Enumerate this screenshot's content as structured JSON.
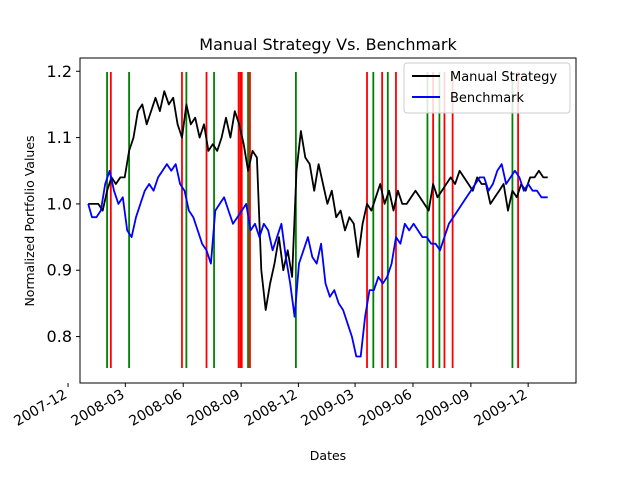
{
  "chart_data": {
    "type": "line",
    "title": "Manual Strategy Vs. Benchmark",
    "xlabel": "Dates",
    "ylabel": "Normalized Portfolio Values",
    "xlim": [
      "2007-12-20",
      "2010-02-15"
    ],
    "ylim": [
      0.73,
      1.22
    ],
    "x_ticks": [
      "2007-12",
      "2008-03",
      "2008-06",
      "2008-09",
      "2008-12",
      "2009-03",
      "2009-06",
      "2009-09",
      "2009-12"
    ],
    "y_ticks": [
      0.8,
      0.9,
      1.0,
      1.1,
      1.2
    ],
    "grid": false,
    "legend_position": "upper right",
    "series": [
      {
        "name": "Manual Strategy",
        "color": "#000000",
        "points": [
          [
            "2008-01-02",
            1.0
          ],
          [
            "2008-01-18",
            1.0
          ],
          [
            "2008-01-25",
            0.99
          ],
          [
            "2008-02-01",
            1.02
          ],
          [
            "2008-02-08",
            1.04
          ],
          [
            "2008-02-15",
            1.03
          ],
          [
            "2008-02-22",
            1.04
          ],
          [
            "2008-02-29",
            1.04
          ],
          [
            "2008-03-07",
            1.08
          ],
          [
            "2008-03-14",
            1.1
          ],
          [
            "2008-03-21",
            1.14
          ],
          [
            "2008-03-28",
            1.15
          ],
          [
            "2008-04-04",
            1.12
          ],
          [
            "2008-04-11",
            1.14
          ],
          [
            "2008-04-18",
            1.16
          ],
          [
            "2008-04-25",
            1.14
          ],
          [
            "2008-05-02",
            1.17
          ],
          [
            "2008-05-09",
            1.15
          ],
          [
            "2008-05-16",
            1.16
          ],
          [
            "2008-05-23",
            1.12
          ],
          [
            "2008-05-30",
            1.1
          ],
          [
            "2008-06-06",
            1.15
          ],
          [
            "2008-06-13",
            1.12
          ],
          [
            "2008-06-20",
            1.13
          ],
          [
            "2008-06-27",
            1.1
          ],
          [
            "2008-07-04",
            1.12
          ],
          [
            "2008-07-11",
            1.08
          ],
          [
            "2008-07-18",
            1.09
          ],
          [
            "2008-07-25",
            1.08
          ],
          [
            "2008-08-01",
            1.1
          ],
          [
            "2008-08-08",
            1.13
          ],
          [
            "2008-08-15",
            1.1
          ],
          [
            "2008-08-22",
            1.14
          ],
          [
            "2008-08-29",
            1.12
          ],
          [
            "2008-09-05",
            1.09
          ],
          [
            "2008-09-12",
            1.05
          ],
          [
            "2008-09-19",
            1.08
          ],
          [
            "2008-09-26",
            1.07
          ],
          [
            "2008-10-03",
            0.9
          ],
          [
            "2008-10-10",
            0.84
          ],
          [
            "2008-10-17",
            0.88
          ],
          [
            "2008-10-24",
            0.91
          ],
          [
            "2008-10-31",
            0.95
          ],
          [
            "2008-11-07",
            0.9
          ],
          [
            "2008-11-14",
            0.93
          ],
          [
            "2008-11-21",
            0.89
          ],
          [
            "2008-11-28",
            1.05
          ],
          [
            "2008-12-05",
            1.11
          ],
          [
            "2008-12-12",
            1.07
          ],
          [
            "2008-12-19",
            1.06
          ],
          [
            "2008-12-26",
            1.02
          ],
          [
            "2009-01-02",
            1.06
          ],
          [
            "2009-01-09",
            1.03
          ],
          [
            "2009-01-16",
            1.0
          ],
          [
            "2009-01-23",
            1.02
          ],
          [
            "2009-01-30",
            0.98
          ],
          [
            "2009-02-06",
            0.99
          ],
          [
            "2009-02-13",
            0.96
          ],
          [
            "2009-02-20",
            0.98
          ],
          [
            "2009-02-27",
            0.97
          ],
          [
            "2009-03-06",
            0.92
          ],
          [
            "2009-03-13",
            0.97
          ],
          [
            "2009-03-20",
            1.0
          ],
          [
            "2009-03-27",
            0.99
          ],
          [
            "2009-04-03",
            1.01
          ],
          [
            "2009-04-10",
            1.03
          ],
          [
            "2009-04-17",
            1.0
          ],
          [
            "2009-04-24",
            1.02
          ],
          [
            "2009-05-01",
            0.99
          ],
          [
            "2009-05-08",
            1.02
          ],
          [
            "2009-05-15",
            1.0
          ],
          [
            "2009-05-22",
            1.0
          ],
          [
            "2009-05-29",
            1.01
          ],
          [
            "2009-06-05",
            1.02
          ],
          [
            "2009-06-12",
            1.01
          ],
          [
            "2009-06-19",
            1.0
          ],
          [
            "2009-06-26",
            0.99
          ],
          [
            "2009-07-03",
            1.03
          ],
          [
            "2009-07-10",
            1.01
          ],
          [
            "2009-07-17",
            1.02
          ],
          [
            "2009-07-24",
            1.03
          ],
          [
            "2009-07-31",
            1.04
          ],
          [
            "2009-08-07",
            1.03
          ],
          [
            "2009-08-14",
            1.05
          ],
          [
            "2009-08-21",
            1.04
          ],
          [
            "2009-08-28",
            1.03
          ],
          [
            "2009-09-04",
            1.02
          ],
          [
            "2009-09-11",
            1.04
          ],
          [
            "2009-09-18",
            1.03
          ],
          [
            "2009-09-25",
            1.03
          ],
          [
            "2009-10-02",
            1.0
          ],
          [
            "2009-10-09",
            1.01
          ],
          [
            "2009-10-16",
            1.02
          ],
          [
            "2009-10-23",
            1.03
          ],
          [
            "2009-10-30",
            0.99
          ],
          [
            "2009-11-06",
            1.02
          ],
          [
            "2009-11-13",
            1.01
          ],
          [
            "2009-11-20",
            1.03
          ],
          [
            "2009-11-27",
            1.02
          ],
          [
            "2009-12-04",
            1.04
          ],
          [
            "2009-12-11",
            1.04
          ],
          [
            "2009-12-18",
            1.05
          ],
          [
            "2009-12-25",
            1.04
          ],
          [
            "2010-01-01",
            1.04
          ]
        ]
      },
      {
        "name": "Benchmark",
        "color": "#0000ff",
        "points": [
          [
            "2008-01-02",
            1.0
          ],
          [
            "2008-01-08",
            0.98
          ],
          [
            "2008-01-15",
            0.98
          ],
          [
            "2008-01-22",
            0.99
          ],
          [
            "2008-01-29",
            1.03
          ],
          [
            "2008-02-05",
            1.05
          ],
          [
            "2008-02-12",
            1.02
          ],
          [
            "2008-02-19",
            1.0
          ],
          [
            "2008-02-26",
            1.01
          ],
          [
            "2008-03-04",
            0.96
          ],
          [
            "2008-03-11",
            0.95
          ],
          [
            "2008-03-18",
            0.98
          ],
          [
            "2008-03-25",
            1.0
          ],
          [
            "2008-04-01",
            1.02
          ],
          [
            "2008-04-08",
            1.03
          ],
          [
            "2008-04-15",
            1.02
          ],
          [
            "2008-04-22",
            1.04
          ],
          [
            "2008-04-29",
            1.05
          ],
          [
            "2008-05-06",
            1.06
          ],
          [
            "2008-05-13",
            1.05
          ],
          [
            "2008-05-20",
            1.06
          ],
          [
            "2008-05-27",
            1.03
          ],
          [
            "2008-06-03",
            1.02
          ],
          [
            "2008-06-10",
            0.99
          ],
          [
            "2008-06-17",
            0.98
          ],
          [
            "2008-06-24",
            0.96
          ],
          [
            "2008-07-01",
            0.94
          ],
          [
            "2008-07-08",
            0.93
          ],
          [
            "2008-07-15",
            0.91
          ],
          [
            "2008-07-22",
            0.99
          ],
          [
            "2008-07-29",
            1.0
          ],
          [
            "2008-08-05",
            1.01
          ],
          [
            "2008-08-12",
            0.99
          ],
          [
            "2008-08-19",
            0.97
          ],
          [
            "2008-08-26",
            0.98
          ],
          [
            "2008-09-02",
            0.99
          ],
          [
            "2008-09-09",
            1.0
          ],
          [
            "2008-09-16",
            0.96
          ],
          [
            "2008-09-23",
            0.97
          ],
          [
            "2008-09-30",
            0.95
          ],
          [
            "2008-10-07",
            0.97
          ],
          [
            "2008-10-14",
            0.96
          ],
          [
            "2008-10-21",
            0.93
          ],
          [
            "2008-10-28",
            0.95
          ],
          [
            "2008-11-04",
            0.97
          ],
          [
            "2008-11-11",
            0.92
          ],
          [
            "2008-11-18",
            0.88
          ],
          [
            "2008-11-25",
            0.83
          ],
          [
            "2008-12-02",
            0.91
          ],
          [
            "2008-12-09",
            0.93
          ],
          [
            "2008-12-16",
            0.95
          ],
          [
            "2008-12-23",
            0.92
          ],
          [
            "2008-12-30",
            0.91
          ],
          [
            "2009-01-06",
            0.94
          ],
          [
            "2009-01-13",
            0.88
          ],
          [
            "2009-01-20",
            0.86
          ],
          [
            "2009-01-27",
            0.87
          ],
          [
            "2009-02-03",
            0.85
          ],
          [
            "2009-02-10",
            0.84
          ],
          [
            "2009-02-17",
            0.82
          ],
          [
            "2009-02-24",
            0.8
          ],
          [
            "2009-03-03",
            0.77
          ],
          [
            "2009-03-10",
            0.77
          ],
          [
            "2009-03-17",
            0.83
          ],
          [
            "2009-03-24",
            0.87
          ],
          [
            "2009-03-31",
            0.87
          ],
          [
            "2009-04-07",
            0.89
          ],
          [
            "2009-04-14",
            0.88
          ],
          [
            "2009-04-21",
            0.89
          ],
          [
            "2009-04-28",
            0.91
          ],
          [
            "2009-05-05",
            0.95
          ],
          [
            "2009-05-12",
            0.94
          ],
          [
            "2009-05-19",
            0.97
          ],
          [
            "2009-05-26",
            0.96
          ],
          [
            "2009-06-02",
            0.97
          ],
          [
            "2009-06-09",
            0.96
          ],
          [
            "2009-06-16",
            0.95
          ],
          [
            "2009-06-23",
            0.95
          ],
          [
            "2009-06-30",
            0.94
          ],
          [
            "2009-07-07",
            0.94
          ],
          [
            "2009-07-14",
            0.93
          ],
          [
            "2009-07-21",
            0.95
          ],
          [
            "2009-07-28",
            0.97
          ],
          [
            "2009-08-04",
            0.98
          ],
          [
            "2009-08-11",
            0.99
          ],
          [
            "2009-08-18",
            1.0
          ],
          [
            "2009-08-25",
            1.01
          ],
          [
            "2009-09-01",
            1.02
          ],
          [
            "2009-09-08",
            1.03
          ],
          [
            "2009-09-15",
            1.04
          ],
          [
            "2009-09-22",
            1.04
          ],
          [
            "2009-09-29",
            1.02
          ],
          [
            "2009-10-06",
            1.03
          ],
          [
            "2009-10-13",
            1.05
          ],
          [
            "2009-10-20",
            1.06
          ],
          [
            "2009-10-27",
            1.03
          ],
          [
            "2009-11-03",
            1.04
          ],
          [
            "2009-11-10",
            1.05
          ],
          [
            "2009-11-17",
            1.04
          ],
          [
            "2009-11-24",
            1.02
          ],
          [
            "2009-12-01",
            1.03
          ],
          [
            "2009-12-08",
            1.02
          ],
          [
            "2009-12-15",
            1.02
          ],
          [
            "2009-12-22",
            1.01
          ],
          [
            "2009-12-29",
            1.01
          ],
          [
            "2010-01-01",
            1.01
          ]
        ]
      }
    ],
    "vertical_lines": [
      {
        "date": "2008-02-01",
        "color": "#008000"
      },
      {
        "date": "2008-02-07",
        "color": "#ff0000"
      },
      {
        "date": "2008-03-07",
        "color": "#008000"
      },
      {
        "date": "2008-05-30",
        "color": "#ff0000"
      },
      {
        "date": "2008-06-06",
        "color": "#008000"
      },
      {
        "date": "2008-07-08",
        "color": "#ff0000"
      },
      {
        "date": "2008-07-20",
        "color": "#008000"
      },
      {
        "date": "2008-08-28",
        "color": "#ff0000"
      },
      {
        "date": "2008-08-31",
        "color": "#ff0000"
      },
      {
        "date": "2008-09-02",
        "color": "#ff0000"
      },
      {
        "date": "2008-09-12",
        "color": "#008000"
      },
      {
        "date": "2008-09-15",
        "color": "#ff0000"
      },
      {
        "date": "2008-11-27",
        "color": "#008000"
      },
      {
        "date": "2009-03-20",
        "color": "#ff0000"
      },
      {
        "date": "2009-03-30",
        "color": "#008000"
      },
      {
        "date": "2009-04-13",
        "color": "#ff0000"
      },
      {
        "date": "2009-04-22",
        "color": "#008000"
      },
      {
        "date": "2009-05-05",
        "color": "#ff0000"
      },
      {
        "date": "2009-06-24",
        "color": "#008000"
      },
      {
        "date": "2009-07-03",
        "color": "#ff0000"
      },
      {
        "date": "2009-07-13",
        "color": "#008000"
      },
      {
        "date": "2009-07-21",
        "color": "#ff0000"
      },
      {
        "date": "2009-08-03",
        "color": "#ff0000"
      },
      {
        "date": "2009-11-06",
        "color": "#008000"
      },
      {
        "date": "2009-11-15",
        "color": "#ff0000"
      }
    ]
  }
}
